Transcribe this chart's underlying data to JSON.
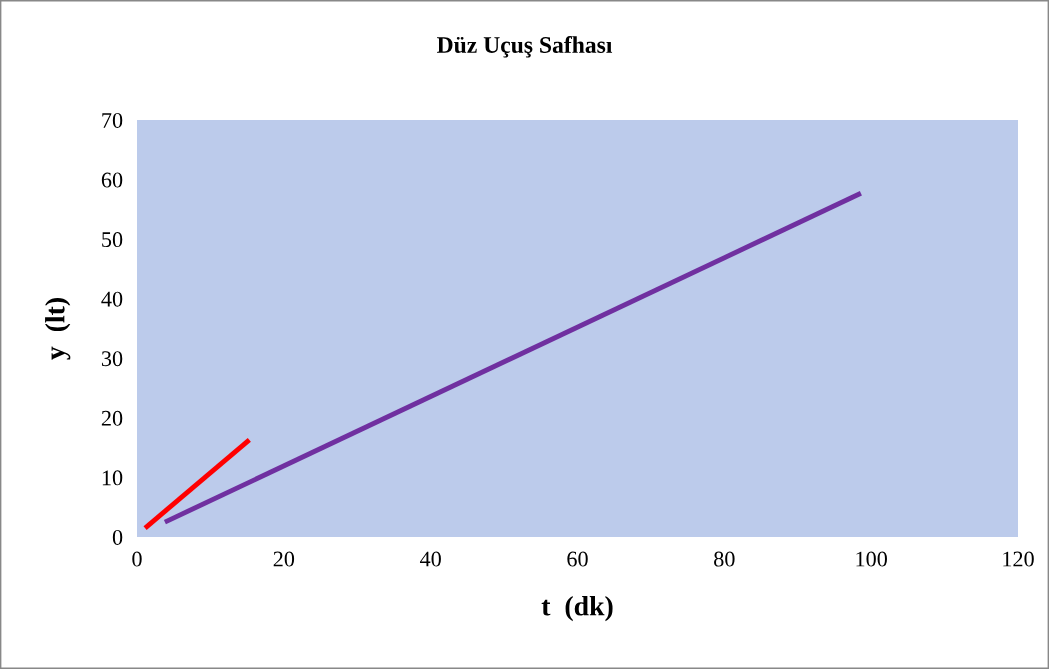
{
  "chart_data": {
    "type": "line",
    "title": "Düz Uçuş Safhası",
    "xlabel": "t  (dk)",
    "ylabel": "y  (lt)",
    "series": [
      {
        "color": "#ff0000",
        "x": [
          1.1,
          15.3
        ],
        "values": [
          1.5,
          16.3
        ]
      },
      {
        "color": "#7030a0",
        "x": [
          3.8,
          98.6
        ],
        "values": [
          2.5,
          57.7
        ]
      }
    ],
    "xlim": [
      0,
      120
    ],
    "xticks": [
      0,
      20,
      40,
      60,
      80,
      100,
      120
    ],
    "ylim": [
      0,
      70
    ],
    "yticks": [
      0,
      10,
      20,
      30,
      40,
      50,
      60,
      70
    ],
    "grid": false,
    "legend": false,
    "marker": "none",
    "line_style": "solid"
  }
}
